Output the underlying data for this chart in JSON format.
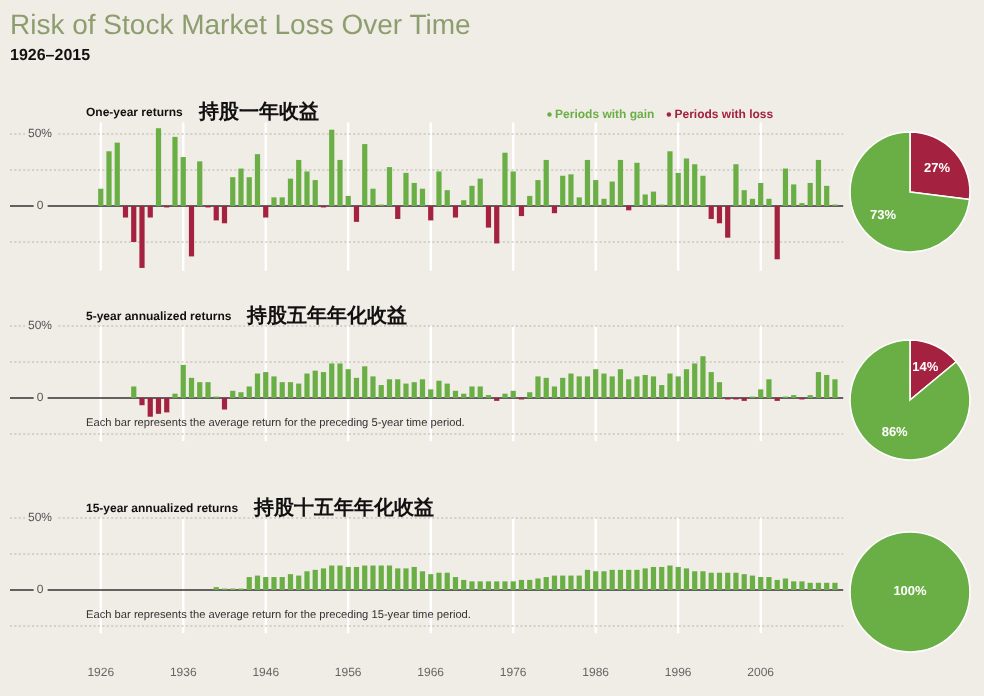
{
  "chart_data": [
    {
      "type": "bar",
      "title": "Risk of Stock Market Loss Over Time",
      "subtitle": "1926–2015",
      "annotations": [
        "One-year returns",
        "持股一年收益"
      ],
      "x": [
        1926,
        1927,
        1928,
        1929,
        1930,
        1931,
        1932,
        1933,
        1934,
        1935,
        1936,
        1937,
        1938,
        1939,
        1940,
        1941,
        1942,
        1943,
        1944,
        1945,
        1946,
        1947,
        1948,
        1949,
        1950,
        1951,
        1952,
        1953,
        1954,
        1955,
        1956,
        1957,
        1958,
        1959,
        1960,
        1961,
        1962,
        1963,
        1964,
        1965,
        1966,
        1967,
        1968,
        1969,
        1970,
        1971,
        1972,
        1973,
        1974,
        1975,
        1976,
        1977,
        1978,
        1979,
        1980,
        1981,
        1982,
        1983,
        1984,
        1985,
        1986,
        1987,
        1988,
        1989,
        1990,
        1991,
        1992,
        1993,
        1994,
        1995,
        1996,
        1997,
        1998,
        1999,
        2000,
        2001,
        2002,
        2003,
        2004,
        2005,
        2006,
        2007,
        2008,
        2009,
        2010,
        2011,
        2012,
        2013,
        2014,
        2015
      ],
      "series": [
        {
          "name": "Periods with gain",
          "color": "#6aaf45",
          "values": [
            12,
            38,
            44,
            null,
            null,
            null,
            null,
            54,
            null,
            48,
            34,
            null,
            31,
            null,
            null,
            null,
            20,
            26,
            20,
            36,
            null,
            6,
            6,
            19,
            32,
            24,
            18,
            null,
            53,
            32,
            7,
            null,
            43,
            12,
            1,
            27,
            null,
            23,
            16,
            12,
            null,
            24,
            11,
            null,
            4,
            14,
            19,
            null,
            null,
            37,
            24,
            null,
            7,
            18,
            32,
            null,
            21,
            22,
            6,
            32,
            18,
            5,
            17,
            32,
            null,
            30,
            8,
            10,
            1,
            38,
            23,
            33,
            29,
            21,
            null,
            null,
            null,
            29,
            11,
            5,
            16,
            5,
            null,
            26,
            15,
            2,
            16,
            32,
            14,
            1
          ]
        },
        {
          "name": "Periods with loss",
          "color": "#a4213f",
          "values": [
            null,
            null,
            null,
            -8,
            -25,
            -43,
            -8,
            null,
            -1,
            null,
            null,
            -35,
            null,
            -1,
            -10,
            -12,
            null,
            null,
            null,
            null,
            -8,
            null,
            null,
            null,
            null,
            null,
            null,
            -1,
            null,
            null,
            null,
            -11,
            null,
            null,
            null,
            null,
            -9,
            null,
            null,
            null,
            -10,
            null,
            null,
            -8,
            null,
            null,
            null,
            -15,
            -26,
            null,
            null,
            -7,
            null,
            null,
            null,
            -5,
            null,
            null,
            null,
            null,
            null,
            null,
            null,
            null,
            -3,
            null,
            null,
            null,
            null,
            null,
            null,
            null,
            null,
            null,
            -9,
            -12,
            -22,
            null,
            null,
            null,
            null,
            null,
            -37,
            null,
            null,
            null,
            null,
            null,
            null,
            null
          ]
        }
      ],
      "xlim": [
        1915,
        2016
      ],
      "ylim": [
        -45,
        58
      ],
      "xticks": [
        {
          "value": 1926,
          "label": null
        },
        {
          "value": 1936,
          "label": null
        },
        {
          "value": 1946,
          "label": null
        },
        {
          "value": 1956,
          "label": null
        },
        {
          "value": 1966,
          "label": null
        },
        {
          "value": 1976,
          "label": null
        },
        {
          "value": 1986,
          "label": null
        },
        {
          "value": 1996,
          "label": null
        },
        {
          "value": 2006,
          "label": null
        }
      ],
      "yticks": [
        {
          "value": 50,
          "label": "50%"
        },
        {
          "value": 25,
          "label": null
        },
        {
          "value": 0,
          "label": "0"
        },
        {
          "value": -25,
          "label": null
        }
      ],
      "grid": true,
      "legend": "top right",
      "tick_labels": "y"
    },
    {
      "type": "pie",
      "categories": [
        null,
        null
      ],
      "values": [
        27,
        73
      ],
      "colors": [
        "#a4213f",
        "#6aaf45"
      ],
      "value_labels": [
        "27%",
        "73%"
      ]
    },
    {
      "type": "bar",
      "annotations": [
        "5-year annualized returns",
        "持股五年年化收益",
        "Each bar represents the average return for the preceding 5-year time period."
      ],
      "x": [
        1930,
        1931,
        1932,
        1933,
        1934,
        1935,
        1936,
        1937,
        1938,
        1939,
        1940,
        1941,
        1942,
        1943,
        1944,
        1945,
        1946,
        1947,
        1948,
        1949,
        1950,
        1951,
        1952,
        1953,
        1954,
        1955,
        1956,
        1957,
        1958,
        1959,
        1960,
        1961,
        1962,
        1963,
        1964,
        1965,
        1966,
        1967,
        1968,
        1969,
        1970,
        1971,
        1972,
        1973,
        1974,
        1975,
        1976,
        1977,
        1978,
        1979,
        1980,
        1981,
        1982,
        1983,
        1984,
        1985,
        1986,
        1987,
        1988,
        1989,
        1990,
        1991,
        1992,
        1993,
        1994,
        1995,
        1996,
        1997,
        1998,
        1999,
        2000,
        2001,
        2002,
        2003,
        2004,
        2005,
        2006,
        2007,
        2008,
        2009,
        2010,
        2011,
        2012,
        2013,
        2014,
        2015
      ],
      "series": [
        {
          "color": "#6aaf45",
          "values": [
            8,
            null,
            null,
            null,
            null,
            3,
            23,
            14,
            11,
            11,
            1,
            null,
            5,
            4,
            8,
            17,
            18,
            15,
            11,
            11,
            10,
            17,
            19,
            18,
            24,
            24,
            20,
            14,
            22,
            15,
            9,
            13,
            13,
            10,
            11,
            13,
            6,
            12,
            10,
            5,
            3,
            8,
            8,
            2,
            null,
            3,
            5,
            null,
            4,
            15,
            14,
            8,
            14,
            17,
            15,
            15,
            20,
            17,
            15,
            20,
            13,
            15,
            16,
            15,
            9,
            17,
            15,
            20,
            24,
            29,
            18,
            11,
            null,
            null,
            null,
            1,
            6,
            13,
            null,
            1,
            2,
            null,
            2,
            18,
            16,
            13
          ]
        },
        {
          "color": "#a4213f",
          "values": [
            null,
            -5,
            -13,
            -11,
            -10,
            null,
            null,
            null,
            null,
            null,
            null,
            -8,
            null,
            null,
            null,
            null,
            null,
            null,
            null,
            null,
            null,
            null,
            null,
            null,
            null,
            null,
            null,
            null,
            null,
            null,
            null,
            null,
            null,
            null,
            null,
            null,
            null,
            null,
            null,
            null,
            null,
            null,
            null,
            null,
            -2,
            null,
            null,
            -1,
            null,
            null,
            null,
            null,
            null,
            null,
            null,
            null,
            null,
            null,
            null,
            null,
            null,
            null,
            null,
            null,
            null,
            null,
            null,
            null,
            null,
            null,
            null,
            null,
            -1,
            -1,
            -2,
            null,
            null,
            null,
            -2,
            null,
            null,
            -1,
            null,
            null,
            null,
            null
          ]
        }
      ],
      "xlim": [
        1915,
        2016
      ],
      "ylim": [
        -30,
        50
      ],
      "xticks": [
        {
          "value": 1926,
          "label": null
        },
        {
          "value": 1936,
          "label": null
        },
        {
          "value": 1946,
          "label": null
        },
        {
          "value": 1956,
          "label": null
        },
        {
          "value": 1966,
          "label": null
        },
        {
          "value": 1976,
          "label": null
        },
        {
          "value": 1986,
          "label": null
        },
        {
          "value": 1996,
          "label": null
        },
        {
          "value": 2006,
          "label": null
        }
      ],
      "yticks": [
        {
          "value": 50,
          "label": "50%"
        },
        {
          "value": 25,
          "label": null
        },
        {
          "value": 0,
          "label": "0"
        },
        {
          "value": -25,
          "label": null
        }
      ],
      "grid": true,
      "tick_labels": "y"
    },
    {
      "type": "pie",
      "categories": [
        null,
        null
      ],
      "values": [
        14,
        86
      ],
      "colors": [
        "#a4213f",
        "#6aaf45"
      ],
      "value_labels": [
        "14%",
        "86%"
      ]
    },
    {
      "type": "bar",
      "annotations": [
        "15-year annualized returns",
        "持股十五年年化收益",
        "Each bar represents the average return for the preceding 15-year time period."
      ],
      "x": [
        1940,
        1941,
        1942,
        1943,
        1944,
        1945,
        1946,
        1947,
        1948,
        1949,
        1950,
        1951,
        1952,
        1953,
        1954,
        1955,
        1956,
        1957,
        1958,
        1959,
        1960,
        1961,
        1962,
        1963,
        1964,
        1965,
        1966,
        1967,
        1968,
        1969,
        1970,
        1971,
        1972,
        1973,
        1974,
        1975,
        1976,
        1977,
        1978,
        1979,
        1980,
        1981,
        1982,
        1983,
        1984,
        1985,
        1986,
        1987,
        1988,
        1989,
        1990,
        1991,
        1992,
        1993,
        1994,
        1995,
        1996,
        1997,
        1998,
        1999,
        2000,
        2001,
        2002,
        2003,
        2004,
        2005,
        2006,
        2007,
        2008,
        2009,
        2010,
        2011,
        2012,
        2013,
        2014,
        2015
      ],
      "series": [
        {
          "color": "#6aaf45",
          "values": [
            2,
            1,
            1,
            1,
            9,
            10,
            9,
            9,
            9,
            11,
            10,
            13,
            14,
            15,
            17,
            17,
            16,
            16,
            17,
            17,
            17,
            17,
            15,
            15,
            16,
            13,
            11,
            12,
            12,
            9,
            7,
            6,
            6,
            6,
            6,
            6,
            6,
            7,
            7,
            8,
            9,
            10,
            10,
            10,
            10,
            14,
            13,
            13,
            14,
            14,
            14,
            14,
            15,
            16,
            16,
            17,
            16,
            15,
            13,
            13,
            12,
            12,
            12,
            12,
            11,
            10,
            9,
            9,
            7,
            8,
            6,
            6,
            5,
            5,
            5,
            5
          ]
        }
      ],
      "xlim": [
        1915,
        2016
      ],
      "ylim": [
        -30,
        50
      ],
      "xticks": [
        {
          "value": 1926,
          "label": "1926"
        },
        {
          "value": 1936,
          "label": "1936"
        },
        {
          "value": 1946,
          "label": "1946"
        },
        {
          "value": 1956,
          "label": "1956"
        },
        {
          "value": 1966,
          "label": "1966"
        },
        {
          "value": 1976,
          "label": "1976"
        },
        {
          "value": 1986,
          "label": "1986"
        },
        {
          "value": 1996,
          "label": "1996"
        },
        {
          "value": 2006,
          "label": "2006"
        }
      ],
      "yticks": [
        {
          "value": 50,
          "label": "50%"
        },
        {
          "value": 25,
          "label": null
        },
        {
          "value": 0,
          "label": "0"
        },
        {
          "value": -25,
          "label": null
        }
      ],
      "grid": true
    },
    {
      "type": "pie",
      "categories": [
        null
      ],
      "values": [
        100
      ],
      "colors": [
        "#6aaf45"
      ],
      "value_labels": [
        "100%"
      ]
    }
  ]
}
